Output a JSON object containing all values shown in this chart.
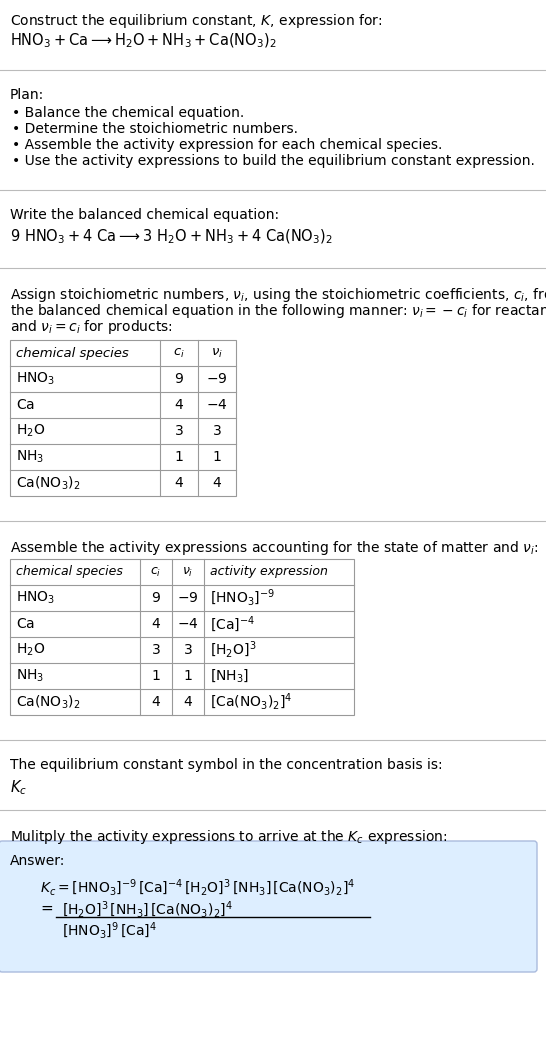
{
  "title_line1": "Construct the equilibrium constant, $K$, expression for:",
  "title_line2": "$\\mathrm{HNO_3 + Ca \\longrightarrow H_2O + NH_3 + Ca(NO_3)_2}$",
  "plan_header": "Plan:",
  "plan_items": [
    "• Balance the chemical equation.",
    "• Determine the stoichiometric numbers.",
    "• Assemble the activity expression for each chemical species.",
    "• Use the activity expressions to build the equilibrium constant expression."
  ],
  "balanced_header": "Write the balanced chemical equation:",
  "balanced_eq": "$\\mathrm{9\\ HNO_3 + 4\\ Ca \\longrightarrow 3\\ H_2O + NH_3 + 4\\ Ca(NO_3)_2}$",
  "stoich_intro_lines": [
    "Assign stoichiometric numbers, $\\nu_i$, using the stoichiometric coefficients, $c_i$, from",
    "the balanced chemical equation in the following manner: $\\nu_i = -c_i$ for reactants",
    "and $\\nu_i = c_i$ for products:"
  ],
  "table1_headers": [
    "chemical species",
    "$c_i$",
    "$\\nu_i$"
  ],
  "table1_rows": [
    [
      "$\\mathrm{HNO_3}$",
      "9",
      "$-9$"
    ],
    [
      "$\\mathrm{Ca}$",
      "4",
      "$-4$"
    ],
    [
      "$\\mathrm{H_2O}$",
      "3",
      "3"
    ],
    [
      "$\\mathrm{NH_3}$",
      "1",
      "1"
    ],
    [
      "$\\mathrm{Ca(NO_3)_2}$",
      "4",
      "4"
    ]
  ],
  "activity_intro": "Assemble the activity expressions accounting for the state of matter and $\\nu_i$:",
  "table2_headers": [
    "chemical species",
    "$c_i$",
    "$\\nu_i$",
    "activity expression"
  ],
  "table2_rows": [
    [
      "$\\mathrm{HNO_3}$",
      "9",
      "$-9$",
      "$[\\mathrm{HNO_3}]^{-9}$"
    ],
    [
      "$\\mathrm{Ca}$",
      "4",
      "$-4$",
      "$[\\mathrm{Ca}]^{-4}$"
    ],
    [
      "$\\mathrm{H_2O}$",
      "3",
      "3",
      "$[\\mathrm{H_2O}]^3$"
    ],
    [
      "$\\mathrm{NH_3}$",
      "1",
      "1",
      "$[\\mathrm{NH_3}]$"
    ],
    [
      "$\\mathrm{Ca(NO_3)_2}$",
      "4",
      "4",
      "$[\\mathrm{Ca(NO_3)_2}]^4$"
    ]
  ],
  "kc_intro": "The equilibrium constant symbol in the concentration basis is:",
  "kc_symbol": "$K_c$",
  "multiply_intro": "Mulitply the activity expressions to arrive at the $K_c$ expression:",
  "answer_label": "Answer:",
  "answer_line1": "$K_c = [\\mathrm{HNO_3}]^{-9}\\,[\\mathrm{Ca}]^{-4}\\,[\\mathrm{H_2O}]^3\\,[\\mathrm{NH_3}]\\,[\\mathrm{Ca(NO_3)_2}]^4$",
  "answer_eq_sign": "=",
  "answer_line2_num": "$[\\mathrm{H_2O}]^3\\,[\\mathrm{NH_3}]\\,[\\mathrm{Ca(NO_3)_2}]^4$",
  "answer_line2_den": "$[\\mathrm{HNO_3}]^9\\,[\\mathrm{Ca}]^4$",
  "bg_color": "#ffffff",
  "table_border_color": "#999999",
  "answer_box_bg": "#ddeeff",
  "answer_box_border": "#aabbdd",
  "text_color": "#000000",
  "font_size": 10.5,
  "small_font": 10.0
}
